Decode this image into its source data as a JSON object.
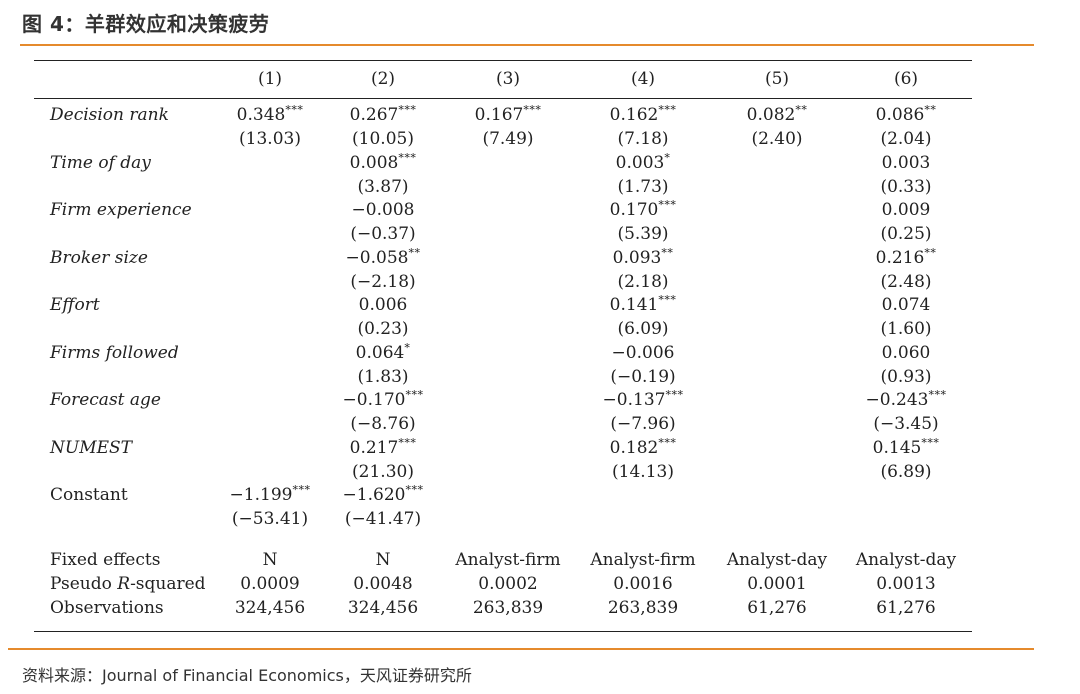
{
  "figure": {
    "title": "图 4：羊群效应和决策疲劳",
    "source": "资料来源：Journal of Financial Economics，天风证券研究所"
  },
  "columns": [
    "(1)",
    "(2)",
    "(3)",
    "(4)",
    "(5)",
    "(6)"
  ],
  "rows": [
    {
      "label": "Decision rank",
      "coef": [
        [
          "0.348",
          "***"
        ],
        [
          "0.267",
          "***"
        ],
        [
          "0.167",
          "***"
        ],
        [
          "0.162",
          "***"
        ],
        [
          "0.082",
          "**"
        ],
        [
          "0.086",
          "**"
        ]
      ],
      "t": [
        "(13.03)",
        "(10.05)",
        "(7.49)",
        "(7.18)",
        "(2.40)",
        "(2.04)"
      ]
    },
    {
      "label": "Time of day",
      "coef": [
        [
          "",
          ""
        ],
        [
          "0.008",
          "***"
        ],
        [
          "",
          ""
        ],
        [
          "0.003",
          "*"
        ],
        [
          "",
          ""
        ],
        [
          "0.003",
          ""
        ]
      ],
      "t": [
        "",
        "(3.87)",
        "",
        "(1.73)",
        "",
        "(0.33)"
      ]
    },
    {
      "label": "Firm experience",
      "coef": [
        [
          "",
          ""
        ],
        [
          "−0.008",
          ""
        ],
        [
          "",
          ""
        ],
        [
          "0.170",
          "***"
        ],
        [
          "",
          ""
        ],
        [
          "0.009",
          ""
        ]
      ],
      "t": [
        "",
        "(−0.37)",
        "",
        "(5.39)",
        "",
        "(0.25)"
      ]
    },
    {
      "label": "Broker size",
      "coef": [
        [
          "",
          ""
        ],
        [
          "−0.058",
          "**"
        ],
        [
          "",
          ""
        ],
        [
          "0.093",
          "**"
        ],
        [
          "",
          ""
        ],
        [
          "0.216",
          "**"
        ]
      ],
      "t": [
        "",
        "(−2.18)",
        "",
        "(2.18)",
        "",
        "(2.48)"
      ]
    },
    {
      "label": "Effort",
      "coef": [
        [
          "",
          ""
        ],
        [
          "0.006",
          ""
        ],
        [
          "",
          ""
        ],
        [
          "0.141",
          "***"
        ],
        [
          "",
          ""
        ],
        [
          "0.074",
          ""
        ]
      ],
      "t": [
        "",
        "(0.23)",
        "",
        "(6.09)",
        "",
        "(1.60)"
      ]
    },
    {
      "label": "Firms followed",
      "coef": [
        [
          "",
          ""
        ],
        [
          "0.064",
          "*"
        ],
        [
          "",
          ""
        ],
        [
          "−0.006",
          ""
        ],
        [
          "",
          ""
        ],
        [
          "0.060",
          ""
        ]
      ],
      "t": [
        "",
        "(1.83)",
        "",
        "(−0.19)",
        "",
        "(0.93)"
      ]
    },
    {
      "label": "Forecast age",
      "coef": [
        [
          "",
          ""
        ],
        [
          "−0.170",
          "***"
        ],
        [
          "",
          ""
        ],
        [
          "−0.137",
          "***"
        ],
        [
          "",
          ""
        ],
        [
          "−0.243",
          "***"
        ]
      ],
      "t": [
        "",
        "(−8.76)",
        "",
        "(−7.96)",
        "",
        "(−3.45)"
      ]
    },
    {
      "label": "NUMEST",
      "coef": [
        [
          "",
          ""
        ],
        [
          "0.217",
          "***"
        ],
        [
          "",
          ""
        ],
        [
          "0.182",
          "***"
        ],
        [
          "",
          ""
        ],
        [
          "0.145",
          "***"
        ]
      ],
      "t": [
        "",
        "(21.30)",
        "",
        "(14.13)",
        "",
        "(6.89)"
      ]
    },
    {
      "label": "Constant",
      "coef": [
        [
          "−1.199",
          "***"
        ],
        [
          "−1.620",
          "***"
        ],
        [
          "",
          ""
        ],
        [
          "",
          ""
        ],
        [
          "",
          ""
        ],
        [
          "",
          ""
        ]
      ],
      "t": [
        "(−53.41)",
        "(−41.47)",
        "",
        "",
        "",
        ""
      ]
    }
  ],
  "summary": [
    {
      "label": "Fixed effects",
      "values": [
        "N",
        "N",
        "Analyst-firm",
        "Analyst-firm",
        "Analyst-day",
        "Analyst-day"
      ]
    },
    {
      "label": "Pseudo R-squared",
      "label_parts": [
        "Pseudo ",
        "R",
        "-squared"
      ],
      "values": [
        "0.0009",
        "0.0048",
        "0.0002",
        "0.0016",
        "0.0001",
        "0.0013"
      ]
    },
    {
      "label": "Observations",
      "values": [
        "324,456",
        "324,456",
        "263,839",
        "263,839",
        "61,276",
        "61,276"
      ]
    }
  ],
  "colors": {
    "accent_rule": "#e58a2c",
    "text": "#222222"
  }
}
